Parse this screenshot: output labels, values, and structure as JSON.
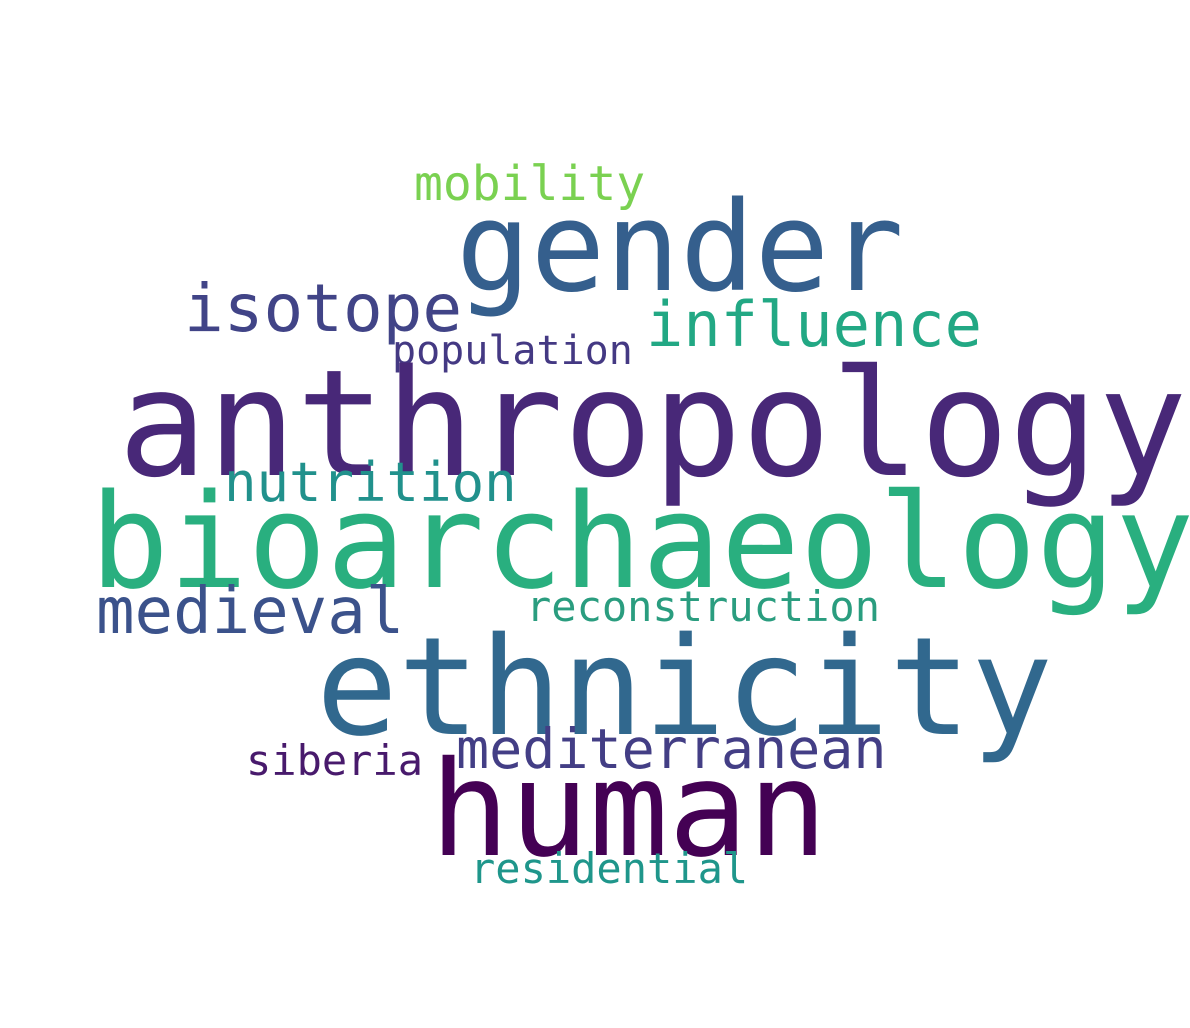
{
  "words": [
    {
      "id": "mobility",
      "text": "mobility",
      "color": "#7ad151"
    },
    {
      "id": "gender",
      "text": "gender",
      "color": "#355f8d"
    },
    {
      "id": "isotope",
      "text": "isotope",
      "color": "#414487"
    },
    {
      "id": "influence",
      "text": "influence",
      "color": "#22a884"
    },
    {
      "id": "population",
      "text": "population",
      "color": "#443983"
    },
    {
      "id": "anthropology",
      "text": "anthropology",
      "color": "#482878"
    },
    {
      "id": "nutrition",
      "text": "nutrition",
      "color": "#21918c"
    },
    {
      "id": "bioarchaeology",
      "text": "bioarchaeology",
      "color": "#29af7f"
    },
    {
      "id": "medieval",
      "text": "medieval",
      "color": "#3b528b"
    },
    {
      "id": "reconstruction",
      "text": "reconstruction",
      "color": "#2a9d7f"
    },
    {
      "id": "ethnicity",
      "text": "ethnicity",
      "color": "#31688e"
    },
    {
      "id": "mediterranean",
      "text": "mediterranean",
      "color": "#433e85"
    },
    {
      "id": "siberia",
      "text": "siberia",
      "color": "#481a6c"
    },
    {
      "id": "human",
      "text": "human",
      "color": "#440154"
    },
    {
      "id": "residential",
      "text": "residential",
      "color": "#1f968b"
    }
  ]
}
